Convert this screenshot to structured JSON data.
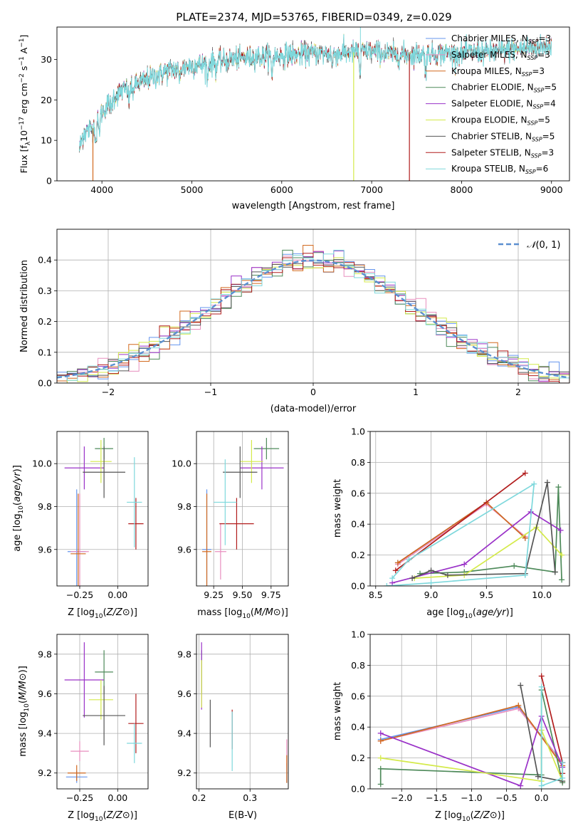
{
  "title": "PLATE=2374, MJD=53765, FIBERID=0349, z=0.029",
  "colors": {
    "Chabrier MILES": "#6495ed",
    "Salpeter MILES": "#e88fbf",
    "Kroupa MILES": "#d2691e",
    "Chabrier ELODIE": "#4e8a5a",
    "Salpeter ELODIE": "#9a32c8",
    "Kroupa ELODIE": "#d4ea4a",
    "Chabrier STELIB": "#555555",
    "Salpeter STELIB": "#b21d1d",
    "Kroupa STELIB": "#7ed8dc"
  },
  "chart_data": [
    {
      "id": "spectrum",
      "type": "line",
      "xlabel": "wavelength [Angstrom, rest frame]",
      "ylabel_parts": [
        "Flux [f",
        "λ",
        "10",
        "−17",
        " erg cm",
        "−2",
        " s",
        "−1",
        " A",
        "−1",
        "]"
      ],
      "xlim": [
        3500,
        9200
      ],
      "ylim": [
        0,
        38
      ],
      "xticks": [
        4000,
        5000,
        6000,
        7000,
        8000,
        9000
      ],
      "yticks": [
        0,
        10,
        20,
        30
      ],
      "legend": [
        {
          "model": "Chabrier MILES",
          "n": "3"
        },
        {
          "model": "Salpeter MILES",
          "n": "3"
        },
        {
          "model": "Kroupa MILES",
          "n": "3"
        },
        {
          "model": "Chabrier ELODIE",
          "n": "5"
        },
        {
          "model": "Salpeter ELODIE",
          "n": "4"
        },
        {
          "model": "Kroupa ELODIE",
          "n": "5"
        },
        {
          "model": "Chabrier STELIB",
          "n": "5"
        },
        {
          "model": "Salpeter STELIB",
          "n": "3"
        },
        {
          "model": "Kroupa STELIB",
          "n": "6"
        }
      ],
      "legend_prefix": "N",
      "legend_sub": "SSP",
      "continuum": [
        [
          3750,
          8
        ],
        [
          3800,
          12
        ],
        [
          3900,
          13
        ],
        [
          4000,
          17
        ],
        [
          4100,
          20
        ],
        [
          4200,
          22
        ],
        [
          4300,
          23
        ],
        [
          4500,
          25
        ],
        [
          4700,
          27
        ],
        [
          5000,
          28.5
        ],
        [
          5300,
          29.5
        ],
        [
          5600,
          30.5
        ],
        [
          6000,
          31
        ],
        [
          6300,
          31.5
        ],
        [
          6600,
          31.5
        ],
        [
          7000,
          32
        ],
        [
          7300,
          31
        ],
        [
          7600,
          31.5
        ],
        [
          8000,
          31.5
        ],
        [
          8400,
          32
        ],
        [
          8800,
          33
        ],
        [
          9000,
          33.5
        ]
      ],
      "glitches": [
        {
          "model": "Kroupa MILES",
          "x": 3900,
          "y": 0
        },
        {
          "model": "Kroupa ELODIE",
          "x": 6800,
          "y": 0
        },
        {
          "model": "Salpeter STELIB",
          "x": 7420,
          "y": 0
        }
      ]
    },
    {
      "id": "residuals",
      "type": "histogram",
      "xlabel": "(data-model)/error",
      "ylabel": "Normed distribution",
      "xlim": [
        -2.5,
        2.5
      ],
      "ylim": [
        0,
        0.5
      ],
      "xticks": [
        -2,
        -1,
        0,
        1,
        2
      ],
      "yticks": [
        0.0,
        0.1,
        0.2,
        0.3,
        0.4
      ],
      "bin_width": 0.1,
      "normal_curve": {
        "label": "N(0,1)",
        "color": "#5b8fd0"
      },
      "grid": true
    },
    {
      "id": "age_vs_Z",
      "type": "errorbar",
      "xlabel": "Z [log10(Z/Z⊙)]",
      "ylabel": "age  [log10(age/yr)]",
      "xlim": [
        -0.4,
        0.2
      ],
      "ylim": [
        9.43,
        10.15
      ],
      "xticks": [
        -0.25,
        0.0
      ],
      "yticks": [
        9.6,
        9.8,
        10.0
      ],
      "points": [
        {
          "model": "Chabrier MILES",
          "x": -0.27,
          "y": 9.59,
          "xerr": 0.06,
          "yerr": 0.29
        },
        {
          "model": "Salpeter MILES",
          "x": -0.25,
          "y": 9.59,
          "xerr": 0.06,
          "yerr": 0.27
        },
        {
          "model": "Kroupa MILES",
          "x": -0.26,
          "y": 9.58,
          "xerr": 0.05,
          "yerr": 0.28
        },
        {
          "model": "Chabrier ELODIE",
          "x": -0.09,
          "y": 10.07,
          "xerr": 0.06,
          "yerr": 0.05
        },
        {
          "model": "Salpeter ELODIE",
          "x": -0.22,
          "y": 9.98,
          "xerr": 0.13,
          "yerr": 0.1
        },
        {
          "model": "Kroupa ELODIE",
          "x": -0.11,
          "y": 10.01,
          "xerr": 0.07,
          "yerr": 0.1
        },
        {
          "model": "Chabrier STELIB",
          "x": -0.09,
          "y": 9.96,
          "xerr": 0.14,
          "yerr": 0.12
        },
        {
          "model": "Salpeter STELIB",
          "x": 0.12,
          "y": 9.72,
          "xerr": 0.05,
          "yerr": 0.12
        },
        {
          "model": "Kroupa STELIB",
          "x": 0.11,
          "y": 9.82,
          "xerr": 0.05,
          "yerr": 0.21
        }
      ]
    },
    {
      "id": "age_vs_mass",
      "type": "errorbar",
      "xlabel": "mass [log10(M/M⊙)]",
      "xlim": [
        9.1,
        9.9
      ],
      "ylim": [
        9.43,
        10.15
      ],
      "xticks": [
        9.25,
        9.5,
        9.75
      ],
      "yticks": [
        9.6,
        9.8,
        10.0
      ],
      "points": [
        {
          "model": "Chabrier MILES",
          "x": 9.19,
          "y": 9.6,
          "xerr": 0.04,
          "yerr": 0.28
        },
        {
          "model": "Salpeter MILES",
          "x": 9.31,
          "y": 9.59,
          "xerr": 0.05,
          "yerr": 0.13
        },
        {
          "model": "Kroupa MILES",
          "x": 9.19,
          "y": 9.59,
          "xerr": 0.04,
          "yerr": 0.27
        },
        {
          "model": "Chabrier ELODIE",
          "x": 9.71,
          "y": 10.07,
          "xerr": 0.11,
          "yerr": 0.05
        },
        {
          "model": "Salpeter ELODIE",
          "x": 9.67,
          "y": 9.98,
          "xerr": 0.19,
          "yerr": 0.1
        },
        {
          "model": "Kroupa ELODIE",
          "x": 9.58,
          "y": 10.01,
          "xerr": 0.1,
          "yerr": 0.1
        },
        {
          "model": "Chabrier STELIB",
          "x": 9.48,
          "y": 9.96,
          "xerr": 0.15,
          "yerr": 0.12
        },
        {
          "model": "Salpeter STELIB",
          "x": 9.45,
          "y": 9.72,
          "xerr": 0.15,
          "yerr": 0.12
        },
        {
          "model": "Kroupa STELIB",
          "x": 9.35,
          "y": 9.82,
          "xerr": 0.1,
          "yerr": 0.2
        }
      ]
    },
    {
      "id": "weight_vs_age",
      "type": "line",
      "xlabel": "age  [log10(age/yr)]",
      "ylabel": "mass weight",
      "xlim": [
        8.45,
        10.25
      ],
      "ylim": [
        0,
        1
      ],
      "xticks": [
        8.5,
        9.0,
        9.5,
        10.0
      ],
      "yticks": [
        0.0,
        0.2,
        0.4,
        0.6,
        0.8,
        1.0
      ],
      "series": [
        {
          "model": "Chabrier MILES",
          "points": [
            [
              8.7,
              0.15
            ],
            [
              9.5,
              0.54
            ],
            [
              9.85,
              0.31
            ]
          ]
        },
        {
          "model": "Salpeter MILES",
          "points": [
            [
              8.7,
              0.14
            ],
            [
              9.5,
              0.53
            ],
            [
              9.85,
              0.32
            ]
          ]
        },
        {
          "model": "Kroupa MILES",
          "points": [
            [
              8.7,
              0.15
            ],
            [
              9.5,
              0.54
            ],
            [
              9.85,
              0.31
            ]
          ]
        },
        {
          "model": "Chabrier ELODIE",
          "points": [
            [
              8.9,
              0.08
            ],
            [
              9.3,
              0.09
            ],
            [
              9.75,
              0.13
            ],
            [
              10.12,
              0.09
            ],
            [
              10.15,
              0.64
            ],
            [
              10.18,
              0.04
            ]
          ]
        },
        {
          "model": "Salpeter ELODIE",
          "points": [
            [
              8.65,
              0.02
            ],
            [
              9.3,
              0.14
            ],
            [
              9.9,
              0.48
            ],
            [
              10.17,
              0.36
            ]
          ]
        },
        {
          "model": "Kroupa ELODIE",
          "points": [
            [
              8.85,
              0.05
            ],
            [
              9.3,
              0.07
            ],
            [
              9.95,
              0.38
            ],
            [
              10.18,
              0.2
            ]
          ]
        },
        {
          "model": "Chabrier STELIB",
          "points": [
            [
              8.83,
              0.05
            ],
            [
              9.0,
              0.1
            ],
            [
              9.15,
              0.07
            ],
            [
              9.85,
              0.08
            ],
            [
              10.05,
              0.67
            ],
            [
              10.12,
              0.09
            ]
          ]
        },
        {
          "model": "Salpeter STELIB",
          "points": [
            [
              8.68,
              0.1
            ],
            [
              9.85,
              0.73
            ]
          ]
        },
        {
          "model": "Kroupa STELIB",
          "points": [
            [
              8.6,
              0.0
            ],
            [
              9.0,
              0.02
            ],
            [
              9.85,
              0.07
            ],
            [
              9.93,
              0.66
            ],
            [
              8.8,
              0.17
            ],
            [
              8.65,
              0.05
            ]
          ]
        }
      ]
    },
    {
      "id": "mass_vs_Z",
      "type": "errorbar",
      "xlabel": "Z [log10(Z/Z⊙)]",
      "ylabel": "mass [log10(M/M⊙)]",
      "xlim": [
        -0.4,
        0.2
      ],
      "ylim": [
        9.12,
        9.9
      ],
      "xticks": [
        -0.25,
        0.0
      ],
      "yticks": [
        9.2,
        9.4,
        9.6,
        9.8
      ],
      "points": [
        {
          "model": "Chabrier MILES",
          "x": -0.27,
          "y": 9.18,
          "xerr": 0.07,
          "yerr": 0.03
        },
        {
          "model": "Salpeter MILES",
          "x": -0.25,
          "y": 9.31,
          "xerr": 0.06,
          "yerr": 0.05
        },
        {
          "model": "Kroupa MILES",
          "x": -0.27,
          "y": 9.2,
          "xerr": 0.06,
          "yerr": 0.04
        },
        {
          "model": "Chabrier ELODIE",
          "x": -0.09,
          "y": 9.71,
          "xerr": 0.06,
          "yerr": 0.11
        },
        {
          "model": "Salpeter ELODIE",
          "x": -0.22,
          "y": 9.67,
          "xerr": 0.13,
          "yerr": 0.19
        },
        {
          "model": "Kroupa ELODIE",
          "x": -0.11,
          "y": 9.57,
          "xerr": 0.08,
          "yerr": 0.1
        },
        {
          "model": "Chabrier STELIB",
          "x": -0.09,
          "y": 9.49,
          "xerr": 0.14,
          "yerr": 0.15
        },
        {
          "model": "Salpeter STELIB",
          "x": 0.12,
          "y": 9.45,
          "xerr": 0.05,
          "yerr": 0.15
        },
        {
          "model": "Kroupa STELIB",
          "x": 0.11,
          "y": 9.35,
          "xerr": 0.05,
          "yerr": 0.1
        }
      ]
    },
    {
      "id": "mass_vs_ebv",
      "type": "errorbar",
      "xlabel": "E(B-V)",
      "xlim": [
        0.195,
        0.375
      ],
      "ylim": [
        9.12,
        9.9
      ],
      "xticks": [
        0.2,
        0.3
      ],
      "yticks": [
        9.2,
        9.4,
        9.6,
        9.8
      ],
      "points": [
        {
          "model": "Chabrier MILES",
          "x": 0.372,
          "y": 9.2,
          "xerr": 0.0,
          "yerr": 0.05
        },
        {
          "model": "Salpeter MILES",
          "x": 0.372,
          "y": 9.3,
          "xerr": 0.0,
          "yerr": 0.07
        },
        {
          "model": "Kroupa MILES",
          "x": 0.372,
          "y": 9.22,
          "xerr": 0.0,
          "yerr": 0.07
        },
        {
          "model": "Chabrier ELODIE",
          "x": 0.205,
          "y": 9.71,
          "xerr": 0.0,
          "yerr": 0.11
        },
        {
          "model": "Salpeter ELODIE",
          "x": 0.205,
          "y": 9.69,
          "xerr": 0.0,
          "yerr": 0.17
        },
        {
          "model": "Kroupa ELODIE",
          "x": 0.205,
          "y": 9.65,
          "xerr": 0.0,
          "yerr": 0.12
        },
        {
          "model": "Chabrier STELIB",
          "x": 0.222,
          "y": 9.45,
          "xerr": 0.0,
          "yerr": 0.12
        },
        {
          "model": "Salpeter STELIB",
          "x": 0.265,
          "y": 9.42,
          "xerr": 0.0,
          "yerr": 0.1
        },
        {
          "model": "Kroupa STELIB",
          "x": 0.265,
          "y": 9.36,
          "xerr": 0.0,
          "yerr": 0.15
        }
      ]
    },
    {
      "id": "weight_vs_Z",
      "type": "line",
      "xlabel": "Z [log10(Z/Z⊙)]",
      "ylabel": "mass weight",
      "xlim": [
        -2.45,
        0.4
      ],
      "ylim": [
        0,
        1
      ],
      "xticks": [
        -2.0,
        -1.5,
        -1.0,
        -0.5,
        0.0
      ],
      "yticks": [
        0.0,
        0.2,
        0.4,
        0.6,
        0.8,
        1.0
      ],
      "series": [
        {
          "model": "Chabrier MILES",
          "points": [
            [
              -2.3,
              0.32
            ],
            [
              -0.33,
              0.53
            ],
            [
              0.3,
              0.17
            ]
          ]
        },
        {
          "model": "Salpeter MILES",
          "points": [
            [
              -2.3,
              0.31
            ],
            [
              -0.33,
              0.52
            ],
            [
              0.3,
              0.17
            ]
          ]
        },
        {
          "model": "Kroupa MILES",
          "points": [
            [
              -2.3,
              0.31
            ],
            [
              -0.33,
              0.54
            ],
            [
              0.3,
              0.15
            ]
          ]
        },
        {
          "model": "Chabrier ELODIE",
          "points": [
            [
              -2.3,
              0.03
            ],
            [
              -2.3,
              0.13
            ],
            [
              0.0,
              0.09
            ],
            [
              0.0,
              0.64
            ],
            [
              0.3,
              0.04
            ]
          ]
        },
        {
          "model": "Salpeter ELODIE",
          "points": [
            [
              -2.3,
              0.36
            ],
            [
              -0.3,
              0.02
            ],
            [
              0.0,
              0.47
            ],
            [
              0.3,
              0.14
            ]
          ]
        },
        {
          "model": "Kroupa ELODIE",
          "points": [
            [
              -2.3,
              0.2
            ],
            [
              0.0,
              0.05
            ],
            [
              0.0,
              0.38
            ],
            [
              0.3,
              0.05
            ]
          ]
        },
        {
          "model": "Chabrier STELIB",
          "points": [
            [
              -0.3,
              0.67
            ],
            [
              -0.05,
              0.08
            ],
            [
              0.3,
              0.05
            ]
          ]
        },
        {
          "model": "Salpeter STELIB",
          "points": [
            [
              0.0,
              0.73
            ],
            [
              0.3,
              0.17
            ],
            [
              0.3,
              0.1
            ]
          ]
        },
        {
          "model": "Kroupa STELIB",
          "points": [
            [
              0.0,
              0.66
            ],
            [
              0.0,
              0.02
            ],
            [
              0.3,
              0.07
            ],
            [
              0.3,
              0.17
            ]
          ]
        }
      ]
    }
  ]
}
